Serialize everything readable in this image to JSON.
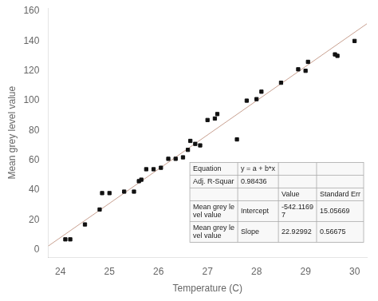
{
  "chart_data": {
    "type": "scatter",
    "xlabel": "Temperature (C)",
    "ylabel": "Mean grey level value",
    "xlim": [
      23.75,
      30.25
    ],
    "xticks": [
      24,
      25,
      26,
      27,
      28,
      29,
      30
    ],
    "ylim": [
      -5,
      162
    ],
    "yticks": [
      0,
      20,
      40,
      60,
      80,
      100,
      120,
      140,
      160
    ],
    "grid": false,
    "series": [
      {
        "type": "scatter",
        "color": "#111111",
        "marker": "square",
        "x": [
          24.1,
          24.2,
          24.5,
          24.8,
          24.85,
          25.0,
          25.3,
          25.5,
          25.6,
          25.65,
          25.75,
          25.9,
          26.05,
          26.2,
          26.35,
          26.5,
          26.6,
          26.65,
          26.75,
          26.85,
          27.0,
          27.15,
          27.2,
          27.6,
          27.8,
          28.0,
          28.1,
          28.5,
          28.85,
          29.0,
          29.05,
          29.6,
          29.65,
          30.0
        ],
        "values": [
          7,
          7,
          17,
          27,
          38,
          38,
          39,
          39,
          46,
          47,
          54,
          54,
          55,
          61,
          61,
          62,
          67,
          73,
          71,
          70,
          87,
          88,
          91,
          74,
          100,
          101,
          106,
          112,
          121,
          120,
          126,
          131,
          130,
          140
        ]
      },
      {
        "type": "line",
        "color": "#c8a090",
        "x": [
          23.75,
          30.25
        ],
        "values": [
          2.46863,
          151.51311
        ]
      }
    ],
    "table": [
      [
        "Equation",
        "y = a + b*x",
        null,
        null
      ],
      [
        "Adj. R-Squar",
        "0.98436",
        null,
        null
      ],
      [
        null,
        null,
        "Value",
        "Standard Err"
      ],
      [
        "Mean grey le\nvel value",
        "Intercept",
        "-542.1169\n7",
        "15.05669"
      ],
      [
        "Mean grey le\nvel value",
        "Slope",
        "22.92992",
        "0.56675"
      ]
    ]
  }
}
